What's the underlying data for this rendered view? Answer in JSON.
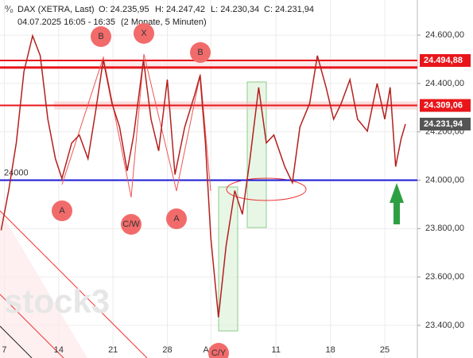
{
  "chart_data": {
    "type": "line",
    "title": "DAX (XETRA, Last)",
    "ohlc": [
      "O: 24.235,95",
      "H: 24.247,42",
      "L: 24.230,34",
      "C: 24.231,94"
    ],
    "subtitle": "04.07.2025 16:05 - 16:35",
    "period": "(2 Monate, 5 Minuten)",
    "watermark": "stock3",
    "series": [
      {
        "name": "DAX",
        "color": "#b3201e",
        "x": [
          -0.3,
          0.4,
          1.1,
          1.8,
          2.6,
          3.3,
          4.0,
          4.7,
          5.3,
          6.2,
          6.9,
          7.7,
          8.4,
          9.1,
          9.9,
          10.6,
          11.3,
          11.9,
          12.8,
          13.5,
          14.2,
          15.0,
          15.7,
          16.6,
          17.5,
          18.0,
          18.5,
          19.0,
          19.7,
          20.4,
          21.2,
          21.9,
          22.6,
          23.4,
          24.1,
          24.8,
          25.8,
          26.5,
          27.2,
          28.1,
          28.8,
          29.6,
          30.3,
          31.0,
          31.8,
          32.5,
          33.4,
          34.3,
          35.0,
          35.5,
          36.0,
          36.5,
          36.9
        ],
        "values": [
          23793,
          23957,
          24154,
          24449,
          24597,
          24515,
          24252,
          24089,
          24007,
          24154,
          24187,
          24089,
          24285,
          24498,
          24318,
          24220,
          24039,
          24187,
          24498,
          24252,
          24121,
          24416,
          24023,
          24220,
          24351,
          24433,
          24154,
          23761,
          23433,
          23728,
          23957,
          23859,
          24089,
          24384,
          24154,
          24187,
          24056,
          23990,
          24220,
          24318,
          24515,
          24384,
          24252,
          24318,
          24416,
          24252,
          24203,
          24400,
          24252,
          24384,
          24056,
          24170,
          24231.94
        ]
      }
    ],
    "levels": [
      {
        "value": 24494.88,
        "label": "24.494,88",
        "color": "#e8161b"
      },
      {
        "value": 24466,
        "color": "#e8161b"
      },
      {
        "value": 24309.06,
        "label": "24.309,06",
        "color": "#e8161b"
      },
      {
        "value": 24231.94,
        "label": "24.231,94",
        "color": "#555555"
      },
      {
        "value": 24000,
        "label": "24000",
        "color": "#1a1ad6"
      }
    ],
    "annotations": [
      "B",
      "X",
      "B",
      "A",
      "C/W",
      "A",
      "C/Y"
    ],
    "xlim": [
      -0.4,
      38.0
    ],
    "xticks": [
      {
        "value": 0,
        "label": "7"
      },
      {
        "value": 5,
        "label": "14"
      },
      {
        "value": 10,
        "label": "21"
      },
      {
        "value": 15,
        "label": "28"
      },
      {
        "value": 19,
        "label": "Aug"
      },
      {
        "value": 25,
        "label": "11"
      },
      {
        "value": 30,
        "label": "18"
      },
      {
        "value": 35,
        "label": "25"
      }
    ],
    "ylim": [
      23265,
      24745
    ],
    "yticks": [
      {
        "value": 23400,
        "label": "23.400,00"
      },
      {
        "value": 23600,
        "label": "23.600,00"
      },
      {
        "value": 23800,
        "label": "23.800,00"
      },
      {
        "value": 24000,
        "label": "24.000,00"
      },
      {
        "value": 24200,
        "label": "24.200,00"
      },
      {
        "value": 24400,
        "label": "24.400,00"
      },
      {
        "value": 24600,
        "label": "24.600,00"
      }
    ],
    "grid": true
  }
}
